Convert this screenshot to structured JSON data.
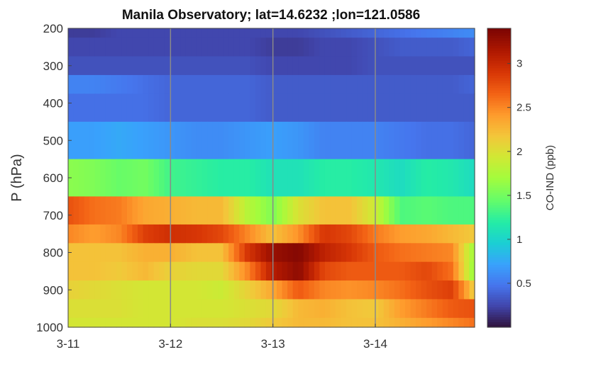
{
  "chart_data": {
    "type": "heatmap",
    "title": "Manila Observatory; lat=14.6232 ;lon=121.0586",
    "xlabel": "",
    "ylabel": "P (hPa)",
    "colorbar_label": "CO-IND (ppb)",
    "colormap": "turbo",
    "x_ticks": [
      "3-11",
      "3-12",
      "3-13",
      "3-14"
    ],
    "y_ticks": [
      "200",
      "300",
      "400",
      "500",
      "600",
      "700",
      "800",
      "900",
      "1000"
    ],
    "colorbar_ticks": [
      "0.5",
      "1",
      "1.5",
      "2",
      "2.5",
      "3"
    ],
    "xlim_days": [
      0,
      3.97
    ],
    "ylim_hpa": [
      200,
      1000
    ],
    "clim": [
      0,
      3.4
    ],
    "grid_x": true,
    "x_days": [
      0.0,
      0.25,
      0.5,
      0.75,
      1.0,
      1.25,
      1.5,
      1.75,
      2.0,
      2.25,
      2.5,
      2.75,
      3.0,
      3.25,
      3.5,
      3.75,
      3.97
    ],
    "pressure_levels": [
      {
        "p": 1000,
        "values": [
          1.95,
          1.95,
          1.95,
          1.95,
          1.95,
          2.0,
          2.0,
          2.05,
          2.15,
          2.25,
          2.25,
          2.2,
          2.2,
          2.3,
          2.4,
          2.5,
          2.6
        ]
      },
      {
        "p": 950,
        "values": [
          2.0,
          2.0,
          2.0,
          1.95,
          1.95,
          1.95,
          1.95,
          2.0,
          2.05,
          2.25,
          2.3,
          2.2,
          2.15,
          2.4,
          2.55,
          2.7,
          2.75
        ]
      },
      {
        "p": 900,
        "values": [
          2.1,
          2.05,
          2.0,
          1.95,
          1.95,
          1.95,
          1.9,
          2.1,
          2.35,
          2.7,
          2.5,
          2.45,
          2.5,
          2.6,
          2.75,
          2.85,
          2.1
        ]
      },
      {
        "p": 850,
        "values": [
          2.2,
          2.2,
          2.15,
          2.25,
          2.1,
          2.05,
          2.05,
          2.5,
          3.1,
          3.3,
          2.8,
          2.7,
          2.7,
          2.7,
          2.8,
          2.6,
          1.6
        ]
      },
      {
        "p": 800,
        "values": [
          2.2,
          2.2,
          2.2,
          2.3,
          2.3,
          2.2,
          2.2,
          2.9,
          3.25,
          3.35,
          3.05,
          2.9,
          2.7,
          2.6,
          2.55,
          2.5,
          1.65
        ]
      },
      {
        "p": 750,
        "values": [
          2.5,
          2.4,
          2.5,
          2.85,
          2.95,
          2.9,
          2.8,
          2.5,
          2.2,
          2.45,
          2.9,
          2.8,
          2.55,
          2.4,
          2.35,
          2.25,
          2.15
        ]
      },
      {
        "p": 700,
        "values": [
          2.75,
          2.6,
          2.55,
          2.35,
          2.3,
          2.25,
          2.25,
          1.8,
          1.55,
          2.0,
          2.2,
          2.2,
          1.9,
          1.35,
          1.4,
          1.35,
          1.35
        ]
      },
      {
        "p": 600,
        "values": [
          1.6,
          1.55,
          1.45,
          1.5,
          1.3,
          1.25,
          1.2,
          1.2,
          1.1,
          1.1,
          1.2,
          1.2,
          1.15,
          1.05,
          1.2,
          1.15,
          1.05
        ]
      },
      {
        "p": 500,
        "values": [
          0.7,
          0.7,
          0.75,
          0.7,
          0.65,
          0.6,
          0.6,
          0.65,
          0.7,
          0.65,
          0.55,
          0.55,
          0.55,
          0.5,
          0.45,
          0.45,
          0.4
        ]
      },
      {
        "p": 400,
        "values": [
          0.45,
          0.45,
          0.45,
          0.45,
          0.4,
          0.4,
          0.4,
          0.4,
          0.35,
          0.35,
          0.35,
          0.35,
          0.35,
          0.35,
          0.35,
          0.35,
          0.35
        ]
      },
      {
        "p": 350,
        "values": [
          0.55,
          0.55,
          0.5,
          0.45,
          0.4,
          0.4,
          0.4,
          0.4,
          0.35,
          0.35,
          0.35,
          0.35,
          0.35,
          0.35,
          0.35,
          0.35,
          0.4
        ]
      },
      {
        "p": 300,
        "values": [
          0.3,
          0.3,
          0.3,
          0.3,
          0.3,
          0.3,
          0.3,
          0.3,
          0.25,
          0.25,
          0.25,
          0.25,
          0.3,
          0.3,
          0.3,
          0.3,
          0.3
        ]
      },
      {
        "p": 250,
        "values": [
          0.25,
          0.25,
          0.25,
          0.25,
          0.25,
          0.25,
          0.25,
          0.25,
          0.2,
          0.2,
          0.25,
          0.25,
          0.3,
          0.35,
          0.35,
          0.35,
          0.4
        ]
      },
      {
        "p": 200,
        "values": [
          0.2,
          0.2,
          0.25,
          0.25,
          0.25,
          0.25,
          0.25,
          0.25,
          0.25,
          0.25,
          0.3,
          0.35,
          0.4,
          0.45,
          0.5,
          0.55,
          0.6
        ]
      }
    ]
  }
}
